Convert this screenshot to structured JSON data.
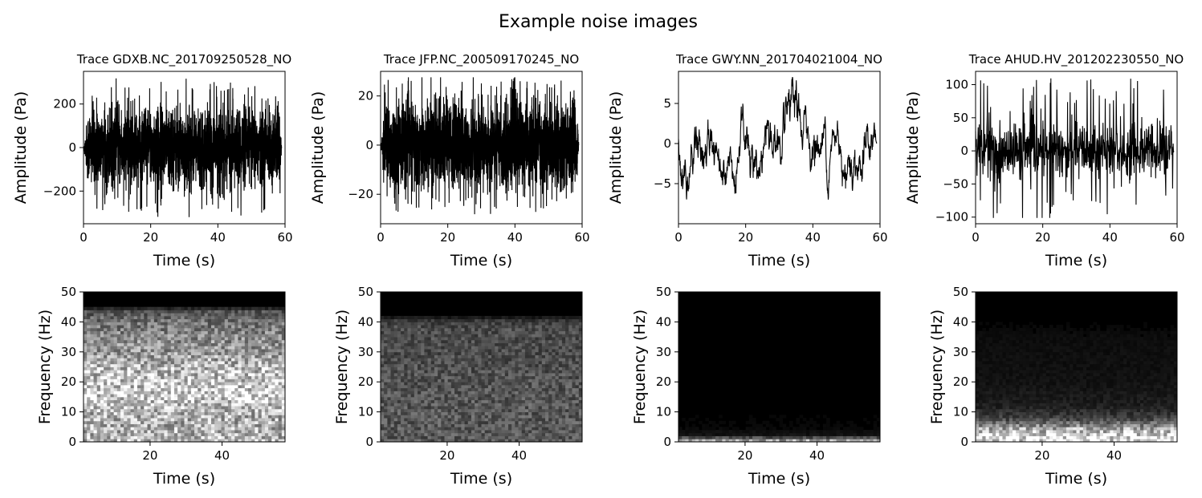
{
  "figure": {
    "title": "Example noise images"
  },
  "chart_data": [
    {
      "type": "line",
      "title": "Trace GDXB.NC_201709250528_NO",
      "xlabel": "Time (s)",
      "ylabel": "Amplitude (Pa)",
      "xlim": [
        0,
        60
      ],
      "ylim": [
        -350,
        350
      ],
      "xticks": [
        0,
        20,
        40,
        60
      ],
      "yticks": [
        -200,
        0,
        200
      ],
      "series": [
        {
          "values_note": "dense black waveform noise",
          "x_range": [
            0,
            59
          ],
          "amplitude_typical": 120,
          "amplitude_peak": 320,
          "taper_start": 1.5
        }
      ],
      "color": "#000000",
      "grid": false
    },
    {
      "type": "line",
      "title": "Trace JFP.NC_200509170245_NO",
      "xlabel": "Time (s)",
      "ylabel": "Amplitude (Pa)",
      "xlim": [
        0,
        60
      ],
      "ylim": [
        -32,
        30
      ],
      "xticks": [
        0,
        20,
        40,
        60
      ],
      "yticks": [
        -20,
        0,
        20
      ],
      "series": [
        {
          "x_range": [
            0,
            59
          ],
          "amplitude_typical": 12,
          "amplitude_peak": 28,
          "taper_start": 1.0
        }
      ],
      "color": "#000000",
      "grid": false
    },
    {
      "type": "line",
      "title": "Trace GWY.NN_201704021004_NO",
      "xlabel": "Time (s)",
      "ylabel": "Amplitude (Pa)",
      "xlim": [
        0,
        60
      ],
      "ylim": [
        -10,
        9
      ],
      "xticks": [
        0,
        20,
        40,
        60
      ],
      "yticks": [
        -5,
        0,
        5
      ],
      "series": [
        {
          "x_range": [
            0,
            59
          ],
          "amplitude_typical": 3,
          "amplitude_peak": 8.5,
          "low_frequency": true
        }
      ],
      "color": "#000000",
      "grid": false
    },
    {
      "type": "line",
      "title": "Trace AHUD.HV_201202230550_NO",
      "xlabel": "Time (s)",
      "ylabel": "Amplitude (Pa)",
      "xlim": [
        0,
        60
      ],
      "ylim": [
        -110,
        120
      ],
      "xticks": [
        0,
        20,
        40,
        60
      ],
      "yticks": [
        -100,
        -50,
        0,
        50,
        100
      ],
      "series": [
        {
          "x_range": [
            0,
            59
          ],
          "amplitude_typical": 40,
          "amplitude_peak": 110,
          "spiky": true
        }
      ],
      "color": "#000000",
      "grid": false
    },
    {
      "type": "heatmap",
      "xlabel": "Time (s)",
      "ylabel": "Frequency (Hz)",
      "xlim": [
        1.5,
        57.5
      ],
      "ylim": [
        0,
        50
      ],
      "xticks": [
        20,
        40
      ],
      "yticks": [
        0,
        10,
        20,
        30,
        40,
        50
      ],
      "colormap": "gray",
      "cutoff_hz": 44,
      "energy_profile": [
        [
          0,
          0.75
        ],
        [
          5,
          0.7
        ],
        [
          10,
          0.7
        ],
        [
          15,
          0.85
        ],
        [
          20,
          0.8
        ],
        [
          25,
          0.75
        ],
        [
          30,
          0.6
        ],
        [
          35,
          0.55
        ],
        [
          40,
          0.45
        ],
        [
          44,
          0.3
        ],
        [
          45,
          0
        ],
        [
          50,
          0
        ]
      ]
    },
    {
      "type": "heatmap",
      "xlabel": "Time (s)",
      "ylabel": "Frequency (Hz)",
      "xlim": [
        1.5,
        57.5
      ],
      "ylim": [
        0,
        50
      ],
      "xticks": [
        20,
        40
      ],
      "yticks": [
        0,
        10,
        20,
        30,
        40,
        50
      ],
      "colormap": "gray",
      "cutoff_hz": 41,
      "energy_profile": [
        [
          0,
          0.35
        ],
        [
          10,
          0.35
        ],
        [
          20,
          0.33
        ],
        [
          30,
          0.3
        ],
        [
          38,
          0.3
        ],
        [
          41,
          0.2
        ],
        [
          42,
          0
        ],
        [
          50,
          0
        ]
      ]
    },
    {
      "type": "heatmap",
      "xlabel": "Time (s)",
      "ylabel": "Frequency (Hz)",
      "xlim": [
        1.5,
        57.5
      ],
      "ylim": [
        0,
        50
      ],
      "xticks": [
        20,
        40
      ],
      "yticks": [
        0,
        10,
        20,
        30,
        40,
        50
      ],
      "colormap": "gray",
      "energy_profile": [
        [
          0,
          0.85
        ],
        [
          1,
          0.5
        ],
        [
          2,
          0.08
        ],
        [
          5,
          0.03
        ],
        [
          10,
          0.02
        ],
        [
          40,
          0.015
        ],
        [
          50,
          0
        ]
      ]
    },
    {
      "type": "heatmap",
      "xlabel": "Time (s)",
      "ylabel": "Frequency (Hz)",
      "xlim": [
        1.5,
        57.5
      ],
      "ylim": [
        0,
        50
      ],
      "xticks": [
        20,
        40
      ],
      "yticks": [
        0,
        10,
        20,
        30,
        40,
        50
      ],
      "colormap": "gray",
      "energy_profile": [
        [
          0,
          0.9
        ],
        [
          2,
          0.9
        ],
        [
          4,
          0.75
        ],
        [
          6,
          0.45
        ],
        [
          8,
          0.25
        ],
        [
          12,
          0.12
        ],
        [
          20,
          0.07
        ],
        [
          35,
          0.05
        ],
        [
          42,
          0.01
        ],
        [
          50,
          0
        ]
      ]
    }
  ]
}
